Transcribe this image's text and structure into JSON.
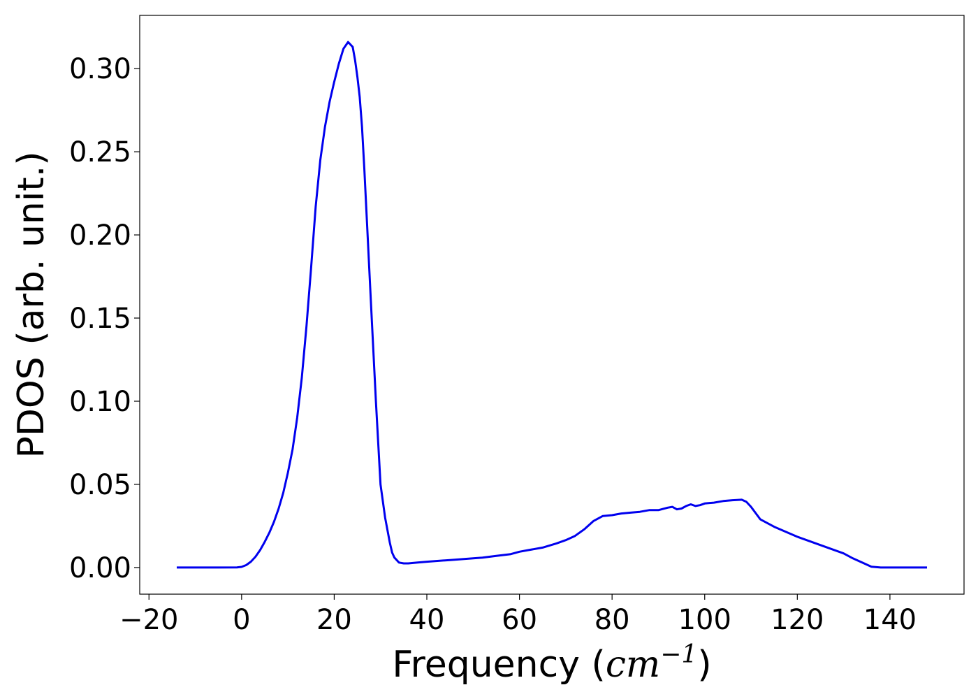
{
  "chart_data": {
    "type": "line",
    "title": "",
    "xlabel": "Frequency (",
    "xlabel_math": "cm",
    "xlabel_exponent": "−1",
    "xlabel_suffix": ")",
    "ylabel": "PDOS (arb. unit.)",
    "xlim": [
      -22,
      156
    ],
    "ylim": [
      -0.016,
      0.332
    ],
    "xticks": [
      -20,
      0,
      20,
      40,
      60,
      80,
      100,
      120,
      140
    ],
    "xtick_labels": [
      "−20",
      "0",
      "20",
      "40",
      "60",
      "80",
      "100",
      "120",
      "140"
    ],
    "yticks": [
      0.0,
      0.05,
      0.1,
      0.15,
      0.2,
      0.25,
      0.3
    ],
    "ytick_labels": [
      "0.00",
      "0.05",
      "0.10",
      "0.15",
      "0.20",
      "0.25",
      "0.30"
    ],
    "grid": false,
    "series": [
      {
        "color": "#0000ee",
        "x": [
          -14,
          -5,
          -1,
          0,
          1,
          2,
          3,
          4,
          5,
          6,
          7,
          8,
          9,
          10,
          11,
          12,
          13,
          14,
          15,
          16,
          17,
          18,
          19,
          20,
          21,
          22,
          23,
          24,
          24.5,
          25,
          25.5,
          26,
          26.5,
          27,
          28,
          29,
          30,
          31,
          32,
          32.5,
          33,
          34,
          35,
          36,
          38,
          40,
          45,
          50,
          52,
          55,
          58,
          60,
          62,
          65,
          68,
          70,
          72,
          74,
          76,
          78,
          80,
          82,
          84,
          86,
          88,
          90,
          92,
          93,
          94,
          95,
          96,
          97,
          98,
          99,
          100,
          102,
          104,
          106,
          108,
          109,
          110,
          112,
          115,
          120,
          125,
          130,
          132,
          134,
          136,
          138,
          140,
          148
        ],
        "y": [
          0.0,
          0.0,
          0.0001,
          0.0004,
          0.0015,
          0.0035,
          0.0065,
          0.0105,
          0.0155,
          0.021,
          0.0275,
          0.0355,
          0.045,
          0.057,
          0.071,
          0.09,
          0.114,
          0.145,
          0.18,
          0.217,
          0.245,
          0.265,
          0.28,
          0.292,
          0.303,
          0.312,
          0.316,
          0.313,
          0.305,
          0.295,
          0.283,
          0.265,
          0.24,
          0.212,
          0.155,
          0.1,
          0.05,
          0.03,
          0.015,
          0.009,
          0.006,
          0.003,
          0.0025,
          0.0025,
          0.003,
          0.0035,
          0.0045,
          0.0055,
          0.006,
          0.007,
          0.008,
          0.0095,
          0.0105,
          0.012,
          0.0145,
          0.0165,
          0.019,
          0.023,
          0.028,
          0.031,
          0.0315,
          0.0325,
          0.033,
          0.0335,
          0.0345,
          0.0345,
          0.036,
          0.0365,
          0.035,
          0.0355,
          0.037,
          0.038,
          0.037,
          0.0375,
          0.0385,
          0.039,
          0.04,
          0.0405,
          0.0408,
          0.0395,
          0.0365,
          0.029,
          0.0245,
          0.0185,
          0.0135,
          0.0085,
          0.0055,
          0.003,
          0.0005,
          0.0,
          0.0,
          0.0
        ]
      }
    ]
  }
}
